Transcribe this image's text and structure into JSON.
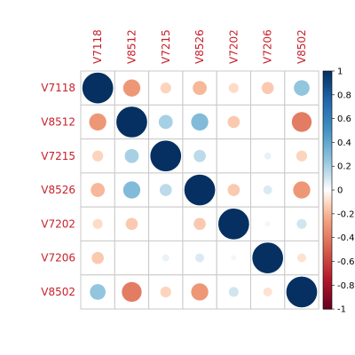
{
  "chart_data": {
    "type": "heatmap",
    "subtype": "correlation-circles",
    "variables": [
      "V7118",
      "V8512",
      "V7215",
      "V8526",
      "V7202",
      "V7206",
      "V8502"
    ],
    "matrix": [
      [
        1.0,
        -0.3,
        -0.12,
        -0.2,
        -0.1,
        -0.15,
        0.25
      ],
      [
        -0.3,
        1.0,
        0.2,
        0.3,
        -0.15,
        0.0,
        -0.4
      ],
      [
        -0.12,
        0.2,
        1.0,
        0.15,
        0.0,
        0.05,
        -0.12
      ],
      [
        -0.2,
        0.3,
        0.15,
        1.0,
        -0.15,
        0.08,
        -0.3
      ],
      [
        -0.1,
        -0.15,
        0.0,
        -0.15,
        1.0,
        0.03,
        0.1
      ],
      [
        -0.15,
        0.0,
        0.05,
        0.08,
        0.03,
        1.0,
        -0.08
      ],
      [
        0.25,
        -0.4,
        -0.12,
        -0.3,
        0.1,
        -0.08,
        1.0
      ]
    ],
    "colorbar": {
      "range": [
        -1,
        1
      ],
      "ticks": [
        "1",
        "0.8",
        "0.6",
        "0.4",
        "0.2",
        "0",
        "-0.2",
        "-0.4",
        "-0.6",
        "-0.8",
        "-1"
      ]
    },
    "grid": true,
    "label_color": "#c8202a"
  }
}
